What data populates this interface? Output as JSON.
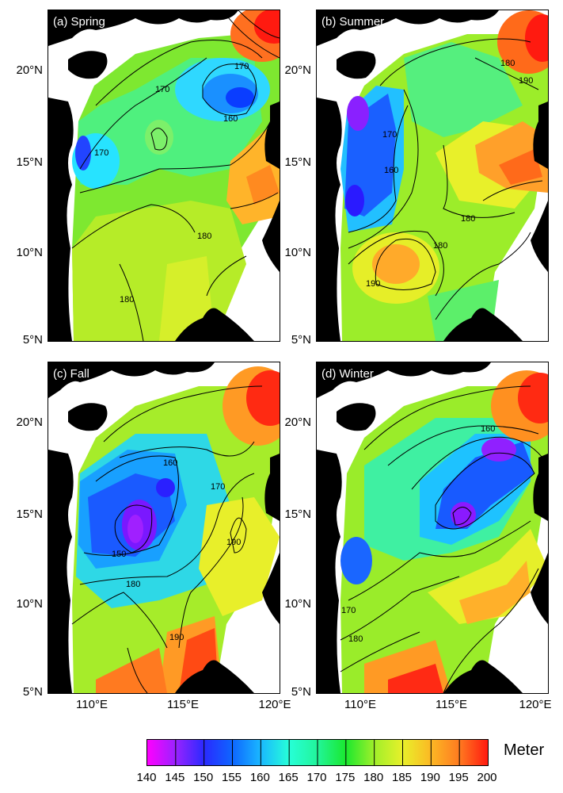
{
  "panels": [
    {
      "id": "a",
      "title": "(a) Spring",
      "contour_labels": [
        "170",
        "170",
        "160",
        "170",
        "180",
        "180"
      ]
    },
    {
      "id": "b",
      "title": "(b) Summer",
      "contour_labels": [
        "180",
        "190",
        "170",
        "160",
        "180",
        "180",
        "190"
      ]
    },
    {
      "id": "c",
      "title": "(c) Fall",
      "contour_labels": [
        "160",
        "170",
        "150",
        "190",
        "180",
        "190"
      ]
    },
    {
      "id": "d",
      "title": "(d) Winter",
      "contour_labels": [
        "160",
        "170",
        "180"
      ]
    }
  ],
  "axes": {
    "y_ticks": [
      "20°N",
      "15°N",
      "10°N",
      "5°N"
    ],
    "x_ticks": [
      "110°E",
      "115°E",
      "120°E"
    ]
  },
  "colorbar": {
    "ticks": [
      "140",
      "145",
      "150",
      "155",
      "160",
      "165",
      "170",
      "175",
      "180",
      "185",
      "190",
      "195",
      "200"
    ],
    "unit": "Meter",
    "colors": [
      "#ff00ff",
      "#9a22ff",
      "#2a2aff",
      "#0e66ff",
      "#1ab8ff",
      "#26ffd8",
      "#22f59a",
      "#1ae82e",
      "#a0ef2a",
      "#e8f02a",
      "#fcb824",
      "#ff7a20",
      "#ff1a10"
    ]
  }
}
